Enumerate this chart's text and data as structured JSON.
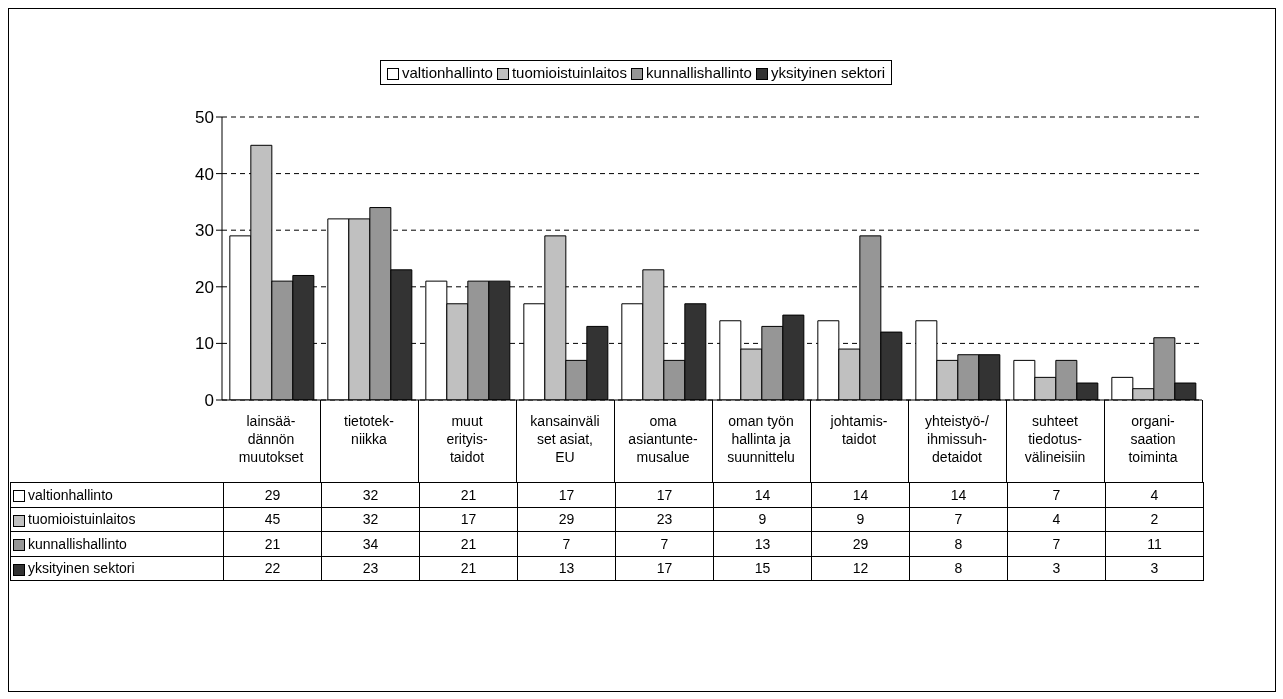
{
  "chart_data": {
    "type": "bar",
    "categories": [
      "lainsää-\ndännön\nmuutokset",
      "tietotek-\nniikka",
      "muut\nerityis-\ntaidot",
      "kansainväli\nset asiat,\nEU",
      "oma\nasiantunte-\nmusalue",
      "oman työn\nhallinta ja\nsuunnittelu",
      "johtamis-\ntaidot",
      "yhteistyö-/\nihmissuh-\ndetaidot",
      "suhteet\ntiedotus-\nvälineisiin",
      "organi-\nsaation\ntoiminta"
    ],
    "series": [
      {
        "name": "valtionhallinto",
        "color": "#ffffff",
        "values": [
          29,
          32,
          21,
          17,
          17,
          14,
          14,
          14,
          7,
          4
        ]
      },
      {
        "name": "tuomioistuinlaitos",
        "color": "#c0c0c0",
        "values": [
          45,
          32,
          17,
          29,
          23,
          9,
          9,
          7,
          4,
          2
        ]
      },
      {
        "name": "kunnallishallinto",
        "color": "#969696",
        "values": [
          21,
          34,
          21,
          7,
          7,
          13,
          29,
          8,
          7,
          11
        ]
      },
      {
        "name": "yksityinen sektori",
        "color": "#333333",
        "values": [
          22,
          23,
          21,
          13,
          17,
          15,
          12,
          8,
          3,
          3
        ]
      }
    ],
    "ylim": [
      0,
      50
    ],
    "yticks": [
      0,
      10,
      20,
      30,
      40,
      50
    ],
    "grid": "y",
    "legend": "top",
    "data_labels": true
  }
}
